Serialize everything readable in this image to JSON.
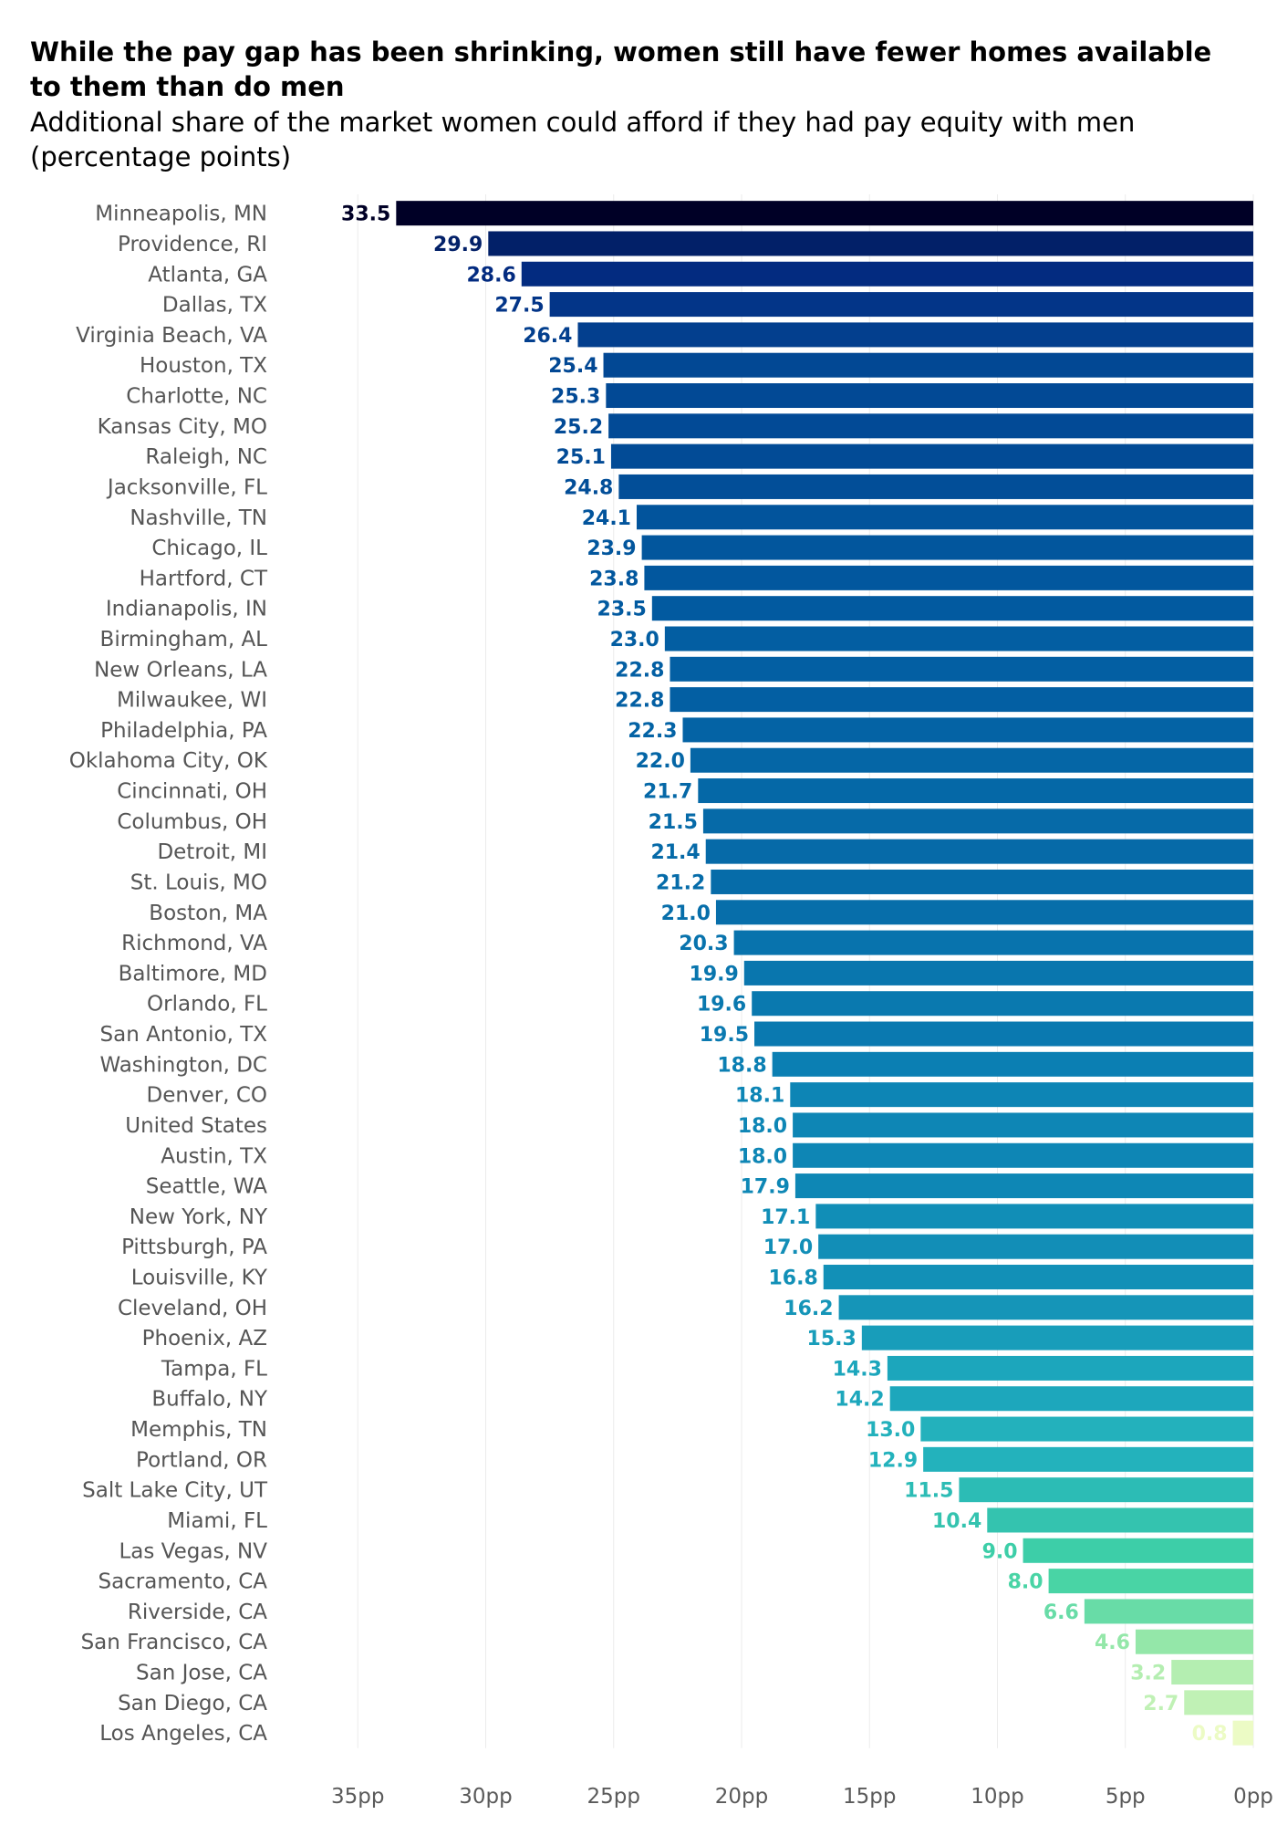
{
  "chart_data": {
    "type": "bar",
    "orientation": "horizontal",
    "title": "While the pay gap has been shrinking, women still have fewer homes available to them than do men",
    "subtitle": "Additional share of the market women could afford if they had pay equity with men (percentage points)",
    "xlabel": "",
    "ylabel": "",
    "xlim": [
      0,
      35
    ],
    "x_reversed": true,
    "x_ticks": [
      {
        "value": 35,
        "label": "35pp"
      },
      {
        "value": 30,
        "label": "30pp"
      },
      {
        "value": 25,
        "label": "25pp"
      },
      {
        "value": 20,
        "label": "20pp"
      },
      {
        "value": 15,
        "label": "15pp"
      },
      {
        "value": 10,
        "label": "10pp"
      },
      {
        "value": 5,
        "label": "5pp"
      },
      {
        "value": 0,
        "label": "0pp"
      }
    ],
    "grid": true,
    "legend": "none",
    "color_scale": "sequential: pale yellow (low) to teal to dark navy (high)",
    "categories": [
      "Minneapolis, MN",
      "Providence, RI",
      "Atlanta, GA",
      "Dallas, TX",
      "Virginia Beach, VA",
      "Houston, TX",
      "Charlotte, NC",
      "Kansas City, MO",
      "Raleigh, NC",
      "Jacksonville, FL",
      "Nashville, TN",
      "Chicago, IL",
      "Hartford, CT",
      "Indianapolis, IN",
      "Birmingham, AL",
      "New Orleans, LA",
      "Milwaukee, WI",
      "Philadelphia, PA",
      "Oklahoma City, OK",
      "Cincinnati, OH",
      "Columbus, OH",
      "Detroit, MI",
      "St. Louis, MO",
      "Boston, MA",
      "Richmond, VA",
      "Baltimore, MD",
      "Orlando, FL",
      "San Antonio, TX",
      "Washington, DC",
      "Denver, CO",
      "United States",
      "Austin, TX",
      "Seattle, WA",
      "New York, NY",
      "Pittsburgh, PA",
      "Louisville, KY",
      "Cleveland, OH",
      "Phoenix, AZ",
      "Tampa, FL",
      "Buffalo, NY",
      "Memphis, TN",
      "Portland, OR",
      "Salt Lake City, UT",
      "Miami, FL",
      "Las Vegas, NV",
      "Sacramento, CA",
      "Riverside, CA",
      "San Francisco, CA",
      "San Jose, CA",
      "San Diego, CA",
      "Los Angeles, CA"
    ],
    "values": [
      33.5,
      29.9,
      28.6,
      27.5,
      26.4,
      25.4,
      25.3,
      25.2,
      25.1,
      24.8,
      24.1,
      23.9,
      23.8,
      23.5,
      23.0,
      22.8,
      22.8,
      22.3,
      22.0,
      21.7,
      21.5,
      21.4,
      21.2,
      21.0,
      20.3,
      19.9,
      19.6,
      19.5,
      18.8,
      18.1,
      18.0,
      18.0,
      17.9,
      17.1,
      17.0,
      16.8,
      16.2,
      15.3,
      14.3,
      14.2,
      13.0,
      12.9,
      11.5,
      10.4,
      9.0,
      8.0,
      6.6,
      4.6,
      3.2,
      2.7,
      0.8
    ],
    "value_labels": [
      "33.5",
      "29.9",
      "28.6",
      "27.5",
      "26.4",
      "25.4",
      "25.3",
      "25.2",
      "25.1",
      "24.8",
      "24.1",
      "23.9",
      "23.8",
      "23.5",
      "23.0",
      "22.8",
      "22.8",
      "22.3",
      "22.0",
      "21.7",
      "21.5",
      "21.4",
      "21.2",
      "21.0",
      "20.3",
      "19.9",
      "19.6",
      "19.5",
      "18.8",
      "18.1",
      "18.0",
      "18.0",
      "17.9",
      "17.1",
      "17.0",
      "16.8",
      "16.2",
      "15.3",
      "14.3",
      "14.2",
      "13.0",
      "12.9",
      "11.5",
      "10.4",
      "9.0",
      "8.0",
      "6.6",
      "4.6",
      "3.2",
      "2.7",
      "0.8"
    ]
  }
}
